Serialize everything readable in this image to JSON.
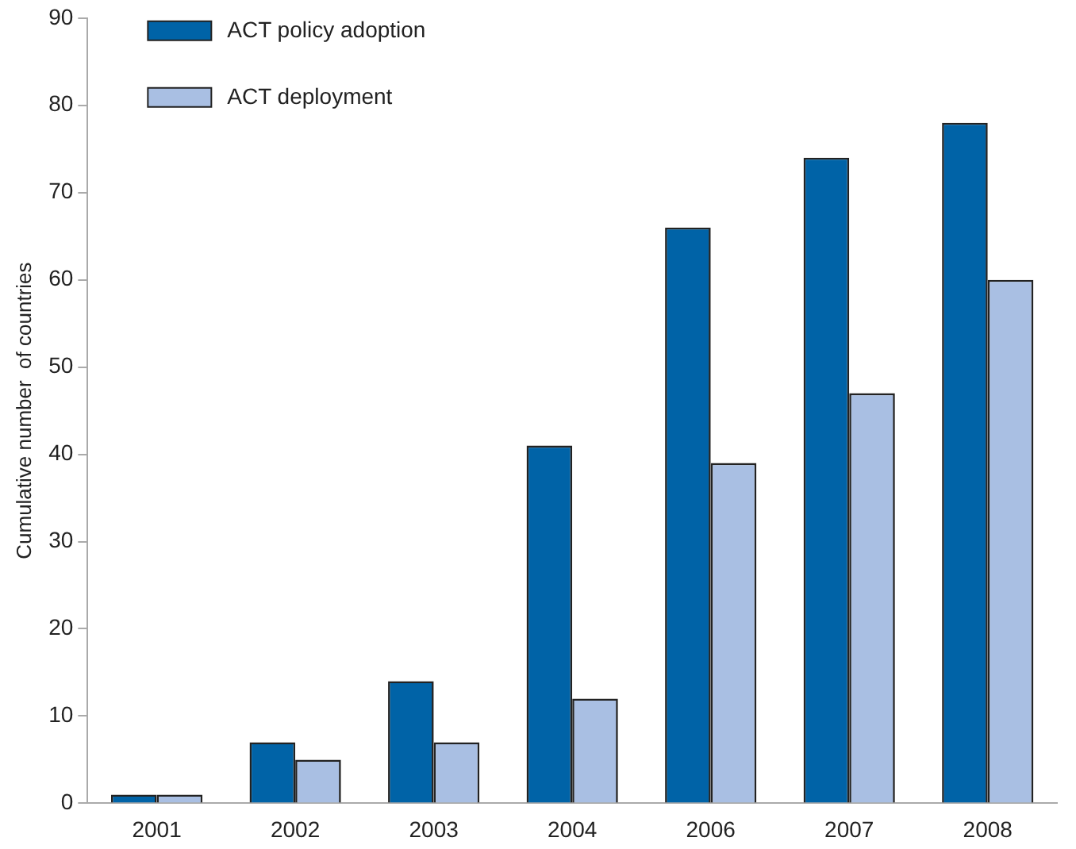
{
  "chart_data": {
    "type": "bar",
    "ylabel": "Cumulative number  of countries",
    "categories": [
      "2001",
      "2002",
      "2003",
      "2004",
      "2006",
      "2007",
      "2008"
    ],
    "series": [
      {
        "name": "ACT policy adoption",
        "color": "#0063a7",
        "values": [
          1,
          7,
          14,
          41,
          66,
          74,
          78
        ]
      },
      {
        "name": "ACT deployment",
        "color": "#a9bfe3",
        "values": [
          1,
          5,
          7,
          12,
          39,
          47,
          60
        ]
      }
    ],
    "ylim": [
      0,
      90
    ],
    "yticks": [
      0,
      10,
      20,
      30,
      40,
      50,
      60,
      70,
      80,
      90
    ],
    "grid": false,
    "legend": "top left"
  }
}
